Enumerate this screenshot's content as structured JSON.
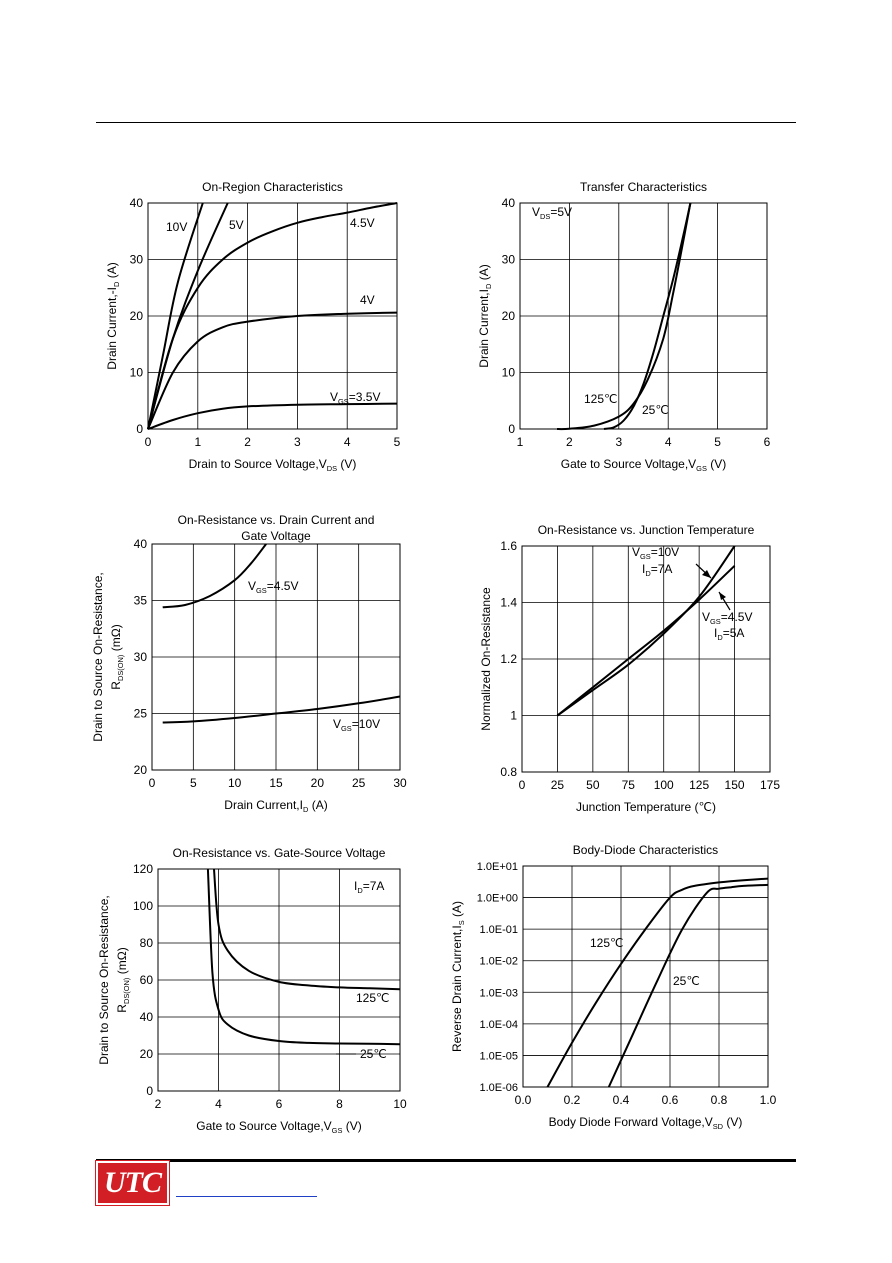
{
  "brand": {
    "logo_text": "UTC"
  },
  "chart_data": [
    {
      "id": "c1",
      "type": "line",
      "title": "On-Region Characteristics",
      "xlabel": "Drain to Source Voltage,V",
      "xlabel_sub": "DS",
      "xlabel_tail": " (V)",
      "ylabel": "Drain Current,-I",
      "ylabel_sub": "D",
      "ylabel_tail": " (A)",
      "xlim": [
        0,
        5
      ],
      "ylim": [
        0,
        40
      ],
      "xticks": [
        "0",
        "1",
        "2",
        "3",
        "4",
        "5"
      ],
      "yticks": [
        "0",
        "10",
        "20",
        "30",
        "40"
      ],
      "series": [
        {
          "name": "10V",
          "x": [
            0,
            0.3,
            0.6,
            1.1
          ],
          "y": [
            0,
            13,
            26,
            40
          ]
        },
        {
          "name": "5V",
          "x": [
            0,
            0.5,
            1,
            1.6
          ],
          "y": [
            0,
            16,
            28,
            40
          ]
        },
        {
          "name": "4.5V",
          "x": [
            0,
            0.5,
            1,
            1.5,
            2,
            2.5,
            3,
            3.5,
            4,
            4.5,
            5
          ],
          "y": [
            0,
            16,
            25,
            30,
            33,
            35,
            36.5,
            37.5,
            38.3,
            39.2,
            40
          ]
        },
        {
          "name": "4V",
          "x": [
            0,
            0.5,
            1,
            1.5,
            2,
            3,
            4,
            5
          ],
          "y": [
            0,
            10,
            15.5,
            18,
            19,
            20,
            20.4,
            20.6
          ]
        },
        {
          "name": "V_GS=3.5V",
          "x": [
            0,
            0.5,
            1,
            1.5,
            2,
            3,
            4,
            5
          ],
          "y": [
            0,
            1.6,
            2.8,
            3.6,
            4,
            4.3,
            4.4,
            4.5
          ]
        }
      ]
    },
    {
      "id": "c2",
      "type": "line",
      "title": "Transfer Characteristics",
      "xlabel": "Gate to Source Voltage,V",
      "xlabel_sub": "GS",
      "xlabel_tail": " (V)",
      "ylabel": "Drain Current,I",
      "ylabel_sub": "D",
      "ylabel_tail": " (A)",
      "xlim": [
        1,
        6
      ],
      "ylim": [
        0,
        40
      ],
      "xticks": [
        "1",
        "2",
        "3",
        "4",
        "5",
        "6"
      ],
      "yticks": [
        "0",
        "10",
        "20",
        "30",
        "40"
      ],
      "annotation": "V_DS=5V",
      "series": [
        {
          "name": "125℃",
          "x": [
            1.75,
            2,
            2.5,
            3,
            3.3,
            3.6,
            3.9,
            4.1,
            4.3,
            4.45
          ],
          "y": [
            0,
            0.05,
            0.6,
            2.2,
            4.5,
            9,
            16,
            24,
            33,
            40
          ]
        },
        {
          "name": "25℃",
          "x": [
            2.7,
            2.9,
            3.1,
            3.3,
            3.5,
            3.7,
            3.9,
            4.1,
            4.3,
            4.45
          ],
          "y": [
            0,
            0.3,
            1.5,
            4,
            8,
            13.5,
            20,
            26.5,
            34,
            40
          ]
        }
      ]
    },
    {
      "id": "c3",
      "type": "line",
      "title": "On-Resistance vs. Drain Current and",
      "title2": "Gate Voltage",
      "xlabel": "Drain Current,I",
      "xlabel_sub": "D",
      "xlabel_tail": " (A)",
      "ylabel": "Drain to Source On-Resistance,",
      "ylabel2": "R",
      "ylabel2_sub": "DS(ON)",
      "ylabel2_tail": " (mΩ)",
      "xlim": [
        0,
        30
      ],
      "ylim": [
        20,
        40
      ],
      "xticks": [
        "0",
        "5",
        "10",
        "15",
        "20",
        "25",
        "30"
      ],
      "yticks": [
        "20",
        "25",
        "30",
        "35",
        "40"
      ],
      "series": [
        {
          "name": "V_GS=4.5V",
          "x": [
            1.3,
            4,
            7,
            10,
            12,
            13.8
          ],
          "y": [
            34.4,
            34.6,
            35.4,
            36.8,
            38.3,
            40
          ]
        },
        {
          "name": "V_GS=10V",
          "x": [
            1.3,
            5,
            10,
            15,
            20,
            25,
            30
          ],
          "y": [
            24.2,
            24.3,
            24.6,
            25,
            25.4,
            25.9,
            26.5
          ]
        }
      ]
    },
    {
      "id": "c4",
      "type": "line",
      "title": "On-Resistance vs. Junction Temperature",
      "xlabel": "Junction Temperature (℃)",
      "ylabel": "Normalized On-Resistance",
      "xlim": [
        0,
        175
      ],
      "ylim": [
        0.8,
        1.6
      ],
      "xticks": [
        "0",
        "25",
        "50",
        "75",
        "100",
        "125",
        "150",
        "175"
      ],
      "yticks": [
        "0.8",
        "1",
        "1.2",
        "1.4",
        "1.6"
      ],
      "series": [
        {
          "name": "V_GS=10V I_D=7A",
          "x": [
            25,
            50,
            75,
            100,
            125,
            150
          ],
          "y": [
            1,
            1.09,
            1.18,
            1.29,
            1.42,
            1.6
          ]
        },
        {
          "name": "V_GS=4.5V I_D=5A",
          "x": [
            25,
            50,
            75,
            100,
            125,
            150
          ],
          "y": [
            1,
            1.1,
            1.2,
            1.3,
            1.41,
            1.53
          ]
        }
      ],
      "labels": [
        {
          "sym": "V",
          "sub": "GS",
          "tail": "=10V"
        },
        {
          "sym": "I",
          "sub": "D",
          "tail": "=7A"
        },
        {
          "sym": "V",
          "sub": "GS",
          "tail": "=4.5V"
        },
        {
          "sym": "I",
          "sub": "D",
          "tail": "=5A"
        }
      ]
    },
    {
      "id": "c5",
      "type": "line",
      "title": "On-Resistance vs. Gate-Source Voltage",
      "xlabel": "Gate to Source Voltage,V",
      "xlabel_sub": "GS",
      "xlabel_tail": " (V)",
      "ylabel": "Drain to Source On-Resistance,",
      "ylabel2": "R",
      "ylabel2_sub": "DS(ON)",
      "ylabel2_tail": " (mΩ)",
      "xlim": [
        2,
        10
      ],
      "ylim": [
        0,
        120
      ],
      "xticks": [
        "2",
        "4",
        "6",
        "8",
        "10"
      ],
      "yticks": [
        "0",
        "20",
        "40",
        "60",
        "80",
        "100",
        "120"
      ],
      "annotation": "I_D=7A",
      "series": [
        {
          "name": "125℃",
          "x": [
            3.85,
            4,
            4.3,
            5,
            6,
            7,
            8,
            9,
            10
          ],
          "y": [
            120,
            90,
            76,
            65,
            59,
            57,
            56,
            55.5,
            55
          ]
        },
        {
          "name": "25℃",
          "x": [
            3.65,
            3.8,
            4,
            4.3,
            5,
            6,
            7,
            8,
            9,
            10
          ],
          "y": [
            120,
            64,
            44,
            36,
            30,
            27,
            26,
            25.7,
            25.5,
            25.3
          ]
        }
      ]
    },
    {
      "id": "c6",
      "type": "line",
      "title": "Body-Diode Characteristics",
      "xlabel": "Body Diode Forward Voltage,V",
      "xlabel_sub": "SD",
      "xlabel_tail": " (V)",
      "ylabel": "Reverse Drain Current,I",
      "ylabel_sub": "S",
      "ylabel_tail": " (A)",
      "xlim": [
        0,
        1
      ],
      "ylim_log10": [
        -6,
        1
      ],
      "yscale": "log",
      "xticks": [
        "0.0",
        "0.2",
        "0.4",
        "0.6",
        "0.8",
        "1.0"
      ],
      "yticks": [
        "1.0E-06",
        "1.0E-05",
        "1.0E-04",
        "1.0E-03",
        "1.0E-02",
        "1.0E-01",
        "1.0E+00",
        "1.0E+01"
      ],
      "series": [
        {
          "name": "125℃",
          "x": [
            0.1,
            0.2,
            0.3,
            0.4,
            0.5,
            0.6,
            0.65,
            0.7,
            0.8,
            0.9,
            1.0
          ],
          "log10_y": [
            -6,
            -4.6,
            -3.3,
            -2.1,
            -1,
            0,
            0.25,
            0.37,
            0.48,
            0.55,
            0.6
          ]
        },
        {
          "name": "25℃",
          "x": [
            0.35,
            0.45,
            0.55,
            0.65,
            0.75,
            0.8,
            0.85,
            0.9,
            1.0
          ],
          "log10_y": [
            -6,
            -4.3,
            -2.6,
            -1,
            0.15,
            0.28,
            0.33,
            0.37,
            0.4
          ]
        }
      ]
    }
  ]
}
